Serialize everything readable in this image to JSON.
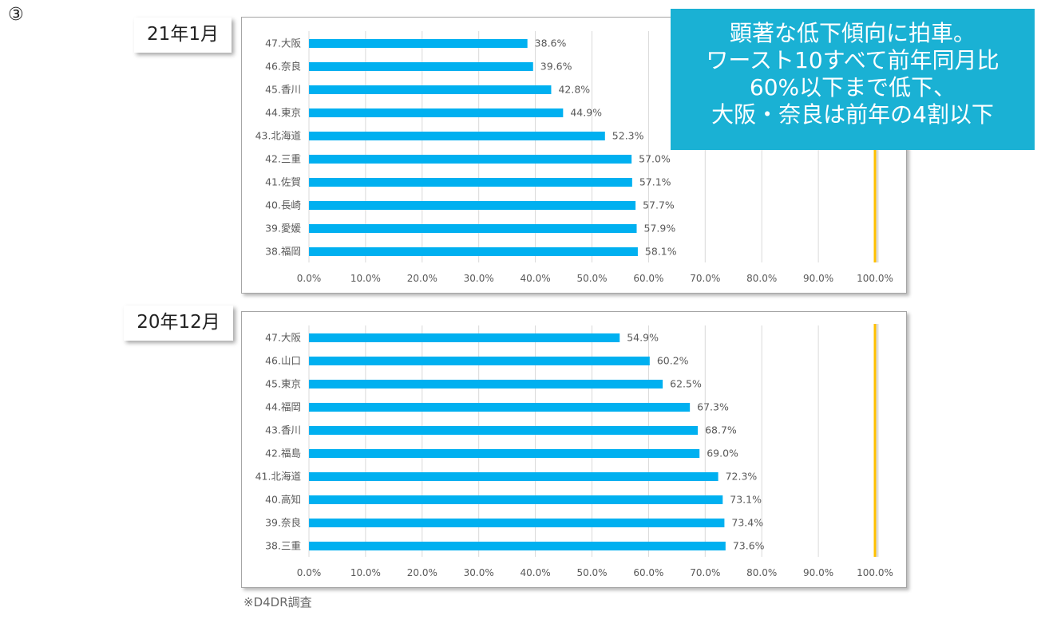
{
  "slide_number": "③",
  "callout": {
    "lines": [
      "顕著な低下傾向に拍車。",
      "ワースト10すべて前年同月比",
      "60%以下まで低下、",
      "大阪・奈良は前年の4割以下"
    ]
  },
  "footnote": "※D4DR調査",
  "colors": {
    "bar": "#00b0f0",
    "reference_line": "#ffc000",
    "grid": "#d9d9d9",
    "callout_bg": "#1ab1d4"
  },
  "chart_data": [
    {
      "type": "bar",
      "orientation": "horizontal",
      "period_label": "21年1月",
      "categories": [
        "47.大阪",
        "46.奈良",
        "45.香川",
        "44.東京",
        "43.北海道",
        "42.三重",
        "41.佐賀",
        "40.長崎",
        "39.愛媛",
        "38.福岡"
      ],
      "values": [
        38.6,
        39.6,
        42.8,
        44.9,
        52.3,
        57.0,
        57.1,
        57.7,
        57.9,
        58.1
      ],
      "value_labels": [
        "38.6%",
        "39.6%",
        "42.8%",
        "44.9%",
        "52.3%",
        "57.0%",
        "57.1%",
        "57.7%",
        "57.9%",
        "58.1%"
      ],
      "x_ticks": [
        "0.0%",
        "10.0%",
        "20.0%",
        "30.0%",
        "40.0%",
        "50.0%",
        "60.0%",
        "70.0%",
        "80.0%",
        "90.0%",
        "100.0%"
      ],
      "xlim": [
        0,
        100
      ],
      "reference_line": 100,
      "grid": true
    },
    {
      "type": "bar",
      "orientation": "horizontal",
      "period_label": "20年12月",
      "categories": [
        "47.大阪",
        "46.山口",
        "45.東京",
        "44.福岡",
        "43.香川",
        "42.福島",
        "41.北海道",
        "40.高知",
        "39.奈良",
        "38.三重"
      ],
      "values": [
        54.9,
        60.2,
        62.5,
        67.3,
        68.7,
        69.0,
        72.3,
        73.1,
        73.4,
        73.6
      ],
      "value_labels": [
        "54.9%",
        "60.2%",
        "62.5%",
        "67.3%",
        "68.7%",
        "69.0%",
        "72.3%",
        "73.1%",
        "73.4%",
        "73.6%"
      ],
      "x_ticks": [
        "0.0%",
        "10.0%",
        "20.0%",
        "30.0%",
        "40.0%",
        "50.0%",
        "60.0%",
        "70.0%",
        "80.0%",
        "90.0%",
        "100.0%"
      ],
      "xlim": [
        0,
        100
      ],
      "reference_line": 100,
      "grid": true
    }
  ]
}
